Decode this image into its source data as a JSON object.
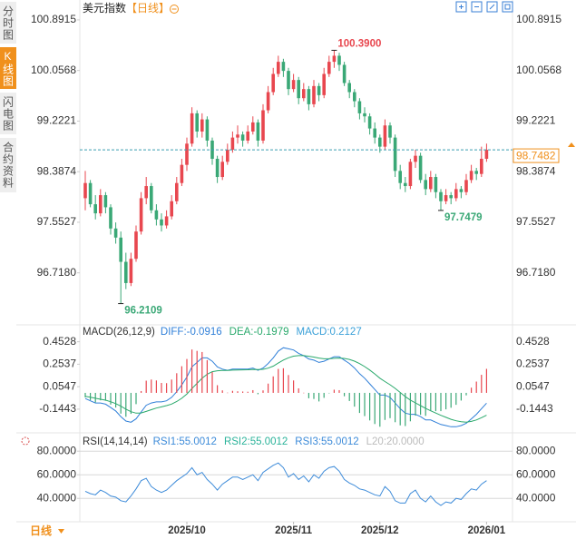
{
  "sidebar": [
    "分时图",
    "K线图",
    "闪电图",
    "合约资料"
  ],
  "title": "美元指数",
  "period": "【日线】",
  "bottom_period": "日线",
  "chart_data": [
    {
      "type": "candlestick",
      "colors": {
        "up": "#e8474f",
        "down": "#3aa876",
        "last": "#3a9fb0",
        "last_label": "#f0901c"
      },
      "ylim": [
        95.95,
        101.07
      ],
      "yticks": [
        100.8915,
        100.0568,
        99.2221,
        98.3874,
        97.5527,
        {
          "value": 96.718,
          "label": "96.7180"
        }
      ],
      "xticks": [
        {
          "value": 20,
          "label": "2025/10"
        },
        {
          "value": 41,
          "label": "2025/11"
        },
        {
          "value": 58,
          "label": "2025/12"
        },
        {
          "value": 79,
          "label": "2026/01"
        }
      ],
      "last_price": 98.7482,
      "annotations": [
        {
          "value": 100.39,
          "label": "100.3900"
        },
        {
          "value": 96.2109,
          "label": "96.2109"
        },
        {
          "value": 97.7479,
          "label": "97.7479"
        }
      ],
      "candles": [
        [
          97.95,
          98.4,
          97.75,
          98.2
        ],
        [
          98.2,
          98.25,
          97.8,
          97.85
        ],
        [
          97.85,
          98.0,
          97.6,
          97.7
        ],
        [
          97.7,
          98.1,
          97.65,
          98.0
        ],
        [
          98.0,
          98.05,
          97.7,
          97.8
        ],
        [
          97.8,
          97.85,
          97.35,
          97.45
        ],
        [
          97.45,
          97.55,
          97.2,
          97.3
        ],
        [
          97.3,
          97.4,
          96.2109,
          96.9
        ],
        [
          96.9,
          97.05,
          96.45,
          96.55
        ],
        [
          96.55,
          97.05,
          96.5,
          96.95
        ],
        [
          96.95,
          97.5,
          96.9,
          97.4
        ],
        [
          97.4,
          98.05,
          97.35,
          97.95
        ],
        [
          97.95,
          98.3,
          97.85,
          98.15
        ],
        [
          98.15,
          98.2,
          97.7,
          97.75
        ],
        [
          97.75,
          97.85,
          97.5,
          97.6
        ],
        [
          97.6,
          97.7,
          97.4,
          97.5
        ],
        [
          97.5,
          97.75,
          97.45,
          97.65
        ],
        [
          97.65,
          98.0,
          97.6,
          97.9
        ],
        [
          97.9,
          98.3,
          97.85,
          98.2
        ],
        [
          98.2,
          98.6,
          98.15,
          98.5
        ],
        [
          98.5,
          98.95,
          98.4,
          98.85
        ],
        [
          98.85,
          99.45,
          98.8,
          99.35
        ],
        [
          99.35,
          99.4,
          98.95,
          99.05
        ],
        [
          99.05,
          99.35,
          98.95,
          99.25
        ],
        [
          99.25,
          99.3,
          98.8,
          98.9
        ],
        [
          98.9,
          98.95,
          98.5,
          98.6
        ],
        [
          98.6,
          98.65,
          98.2,
          98.3
        ],
        [
          98.3,
          98.65,
          98.25,
          98.55
        ],
        [
          98.55,
          98.85,
          98.5,
          98.75
        ],
        [
          98.75,
          99.05,
          98.7,
          98.95
        ],
        [
          98.95,
          99.15,
          98.85,
          99.0
        ],
        [
          99.0,
          99.05,
          98.8,
          98.9
        ],
        [
          98.9,
          99.15,
          98.85,
          99.05
        ],
        [
          99.05,
          99.3,
          99.0,
          99.2
        ],
        [
          99.2,
          99.25,
          98.8,
          98.9
        ],
        [
          98.9,
          99.5,
          98.85,
          99.4
        ],
        [
          99.4,
          99.8,
          99.35,
          99.7
        ],
        [
          99.7,
          100.1,
          99.65,
          100.0
        ],
        [
          100.0,
          100.3,
          99.95,
          100.2
        ],
        [
          100.2,
          100.25,
          99.95,
          100.05
        ],
        [
          100.05,
          100.1,
          99.65,
          99.75
        ],
        [
          99.75,
          100.0,
          99.7,
          99.9
        ],
        [
          99.9,
          99.95,
          99.5,
          99.6
        ],
        [
          99.6,
          99.85,
          99.55,
          99.75
        ],
        [
          99.75,
          99.8,
          99.4,
          99.5
        ],
        [
          99.5,
          99.9,
          99.45,
          99.8
        ],
        [
          99.8,
          99.85,
          99.55,
          99.65
        ],
        [
          99.65,
          100.1,
          99.6,
          100.0
        ],
        [
          100.0,
          100.3,
          99.95,
          100.2
        ],
        [
          100.2,
          100.39,
          100.1,
          100.3
        ],
        [
          100.3,
          100.35,
          100.05,
          100.15
        ],
        [
          100.15,
          100.2,
          99.8,
          99.85
        ],
        [
          99.85,
          99.9,
          99.6,
          99.7
        ],
        [
          99.7,
          99.75,
          99.45,
          99.55
        ],
        [
          99.55,
          99.6,
          99.25,
          99.35
        ],
        [
          99.35,
          99.45,
          99.2,
          99.3
        ],
        [
          99.3,
          99.35,
          99.0,
          99.1
        ],
        [
          99.1,
          99.2,
          98.85,
          98.95
        ],
        [
          98.95,
          99.0,
          98.7,
          98.8
        ],
        [
          98.8,
          99.25,
          98.75,
          99.15
        ],
        [
          99.15,
          99.2,
          98.85,
          98.95
        ],
        [
          98.95,
          99.0,
          98.3,
          98.4
        ],
        [
          98.4,
          98.5,
          98.1,
          98.2
        ],
        [
          98.2,
          98.3,
          98.05,
          98.15
        ],
        [
          98.15,
          98.6,
          98.1,
          98.55
        ],
        [
          98.55,
          98.75,
          98.45,
          98.65
        ],
        [
          98.65,
          98.7,
          98.2,
          98.25
        ],
        [
          98.25,
          98.35,
          98.0,
          98.1
        ],
        [
          98.1,
          98.4,
          98.05,
          98.3
        ],
        [
          98.3,
          98.35,
          97.95,
          98.05
        ],
        [
          98.05,
          98.1,
          97.7479,
          97.9
        ],
        [
          97.9,
          98.1,
          97.85,
          98.0
        ],
        [
          98.0,
          98.05,
          97.85,
          97.95
        ],
        [
          97.95,
          98.2,
          97.9,
          98.1
        ],
        [
          98.1,
          98.15,
          97.95,
          98.05
        ],
        [
          98.05,
          98.35,
          98.0,
          98.25
        ],
        [
          98.25,
          98.5,
          98.2,
          98.4
        ],
        [
          98.4,
          98.45,
          98.25,
          98.35
        ],
        [
          98.35,
          98.8,
          98.3,
          98.6
        ],
        [
          98.6,
          98.85,
          98.55,
          98.7482
        ]
      ]
    },
    {
      "type": "macd",
      "title": "MACD(26,12,9)",
      "title_color": "#333",
      "ylim": [
        -0.33,
        0.49
      ],
      "yticks": [
        0.4528,
        0.2537,
        0.0547,
        -0.1443
      ],
      "colors": {
        "up": "#e8474f",
        "down": "#3aa876"
      },
      "series": [
        {
          "name": "DIFF:-0.0916",
          "color": "#2f7fd8",
          "values": [
            -0.05,
            -0.07,
            -0.09,
            -0.09,
            -0.1,
            -0.13,
            -0.16,
            -0.21,
            -0.25,
            -0.26,
            -0.23,
            -0.17,
            -0.11,
            -0.09,
            -0.08,
            -0.08,
            -0.07,
            -0.04,
            0.01,
            0.07,
            0.14,
            0.23,
            0.27,
            0.31,
            0.31,
            0.28,
            0.23,
            0.21,
            0.2,
            0.21,
            0.21,
            0.21,
            0.21,
            0.22,
            0.2,
            0.22,
            0.26,
            0.31,
            0.37,
            0.4,
            0.39,
            0.38,
            0.35,
            0.33,
            0.3,
            0.29,
            0.27,
            0.28,
            0.3,
            0.32,
            0.32,
            0.29,
            0.26,
            0.22,
            0.17,
            0.13,
            0.08,
            0.03,
            -0.02,
            -0.02,
            -0.04,
            -0.09,
            -0.14,
            -0.18,
            -0.19,
            -0.19,
            -0.21,
            -0.24,
            -0.24,
            -0.26,
            -0.28,
            -0.29,
            -0.3,
            -0.3,
            -0.29,
            -0.27,
            -0.23,
            -0.19,
            -0.14,
            -0.0916
          ]
        },
        {
          "name": "DEA:-0.1979",
          "color": "#29a96b",
          "values": [
            -0.03,
            -0.038,
            -0.048,
            -0.057,
            -0.065,
            -0.078,
            -0.095,
            -0.118,
            -0.144,
            -0.167,
            -0.18,
            -0.178,
            -0.164,
            -0.149,
            -0.135,
            -0.124,
            -0.113,
            -0.099,
            -0.077,
            -0.048,
            -0.01,
            0.038,
            0.084,
            0.129,
            0.165,
            0.188,
            0.196,
            0.199,
            0.199,
            0.201,
            0.203,
            0.204,
            0.205,
            0.208,
            0.206,
            0.209,
            0.219,
            0.237,
            0.264,
            0.291,
            0.311,
            0.325,
            0.33,
            0.33,
            0.324,
            0.317,
            0.308,
            0.302,
            0.302,
            0.306,
            0.308,
            0.305,
            0.296,
            0.281,
            0.259,
            0.233,
            0.202,
            0.168,
            0.13,
            0.1,
            0.072,
            0.04,
            0.004,
            -0.033,
            -0.064,
            -0.089,
            -0.113,
            -0.138,
            -0.159,
            -0.179,
            -0.199,
            -0.217,
            -0.234,
            -0.247,
            -0.256,
            -0.259,
            -0.253,
            -0.24,
            -0.22,
            -0.1979
          ]
        },
        {
          "name": "MACD:0.2127",
          "color": "#3aa0d8",
          "kind": "histogram",
          "values": [
            -0.04,
            -0.064,
            -0.084,
            -0.066,
            -0.07,
            -0.104,
            -0.13,
            -0.184,
            -0.212,
            -0.186,
            -0.1,
            0.016,
            0.108,
            0.118,
            0.11,
            0.088,
            0.086,
            0.118,
            0.174,
            0.236,
            0.3,
            0.384,
            0.372,
            0.362,
            0.29,
            0.184,
            0.068,
            0.022,
            0.002,
            0.018,
            0.014,
            0.012,
            0.01,
            0.024,
            -0.012,
            0.022,
            0.082,
            0.146,
            0.212,
            0.218,
            0.158,
            0.11,
            0.04,
            0.001,
            -0.048,
            -0.054,
            -0.076,
            -0.044,
            -0.004,
            0.028,
            0.024,
            -0.03,
            -0.072,
            -0.122,
            -0.178,
            -0.206,
            -0.244,
            -0.276,
            -0.3,
            -0.24,
            -0.224,
            -0.26,
            -0.288,
            -0.294,
            -0.252,
            -0.202,
            -0.194,
            -0.204,
            -0.162,
            -0.162,
            -0.162,
            -0.146,
            -0.132,
            -0.106,
            -0.068,
            -0.022,
            0.046,
            0.1,
            0.16,
            0.2127
          ]
        }
      ]
    },
    {
      "type": "line",
      "title": "RSI(14,14,14)",
      "title_color": "#333",
      "ylim": [
        24,
        84
      ],
      "yticks": [
        {
          "value": 80,
          "label": "80.0000"
        },
        {
          "value": 60,
          "label": "60.0000"
        },
        {
          "value": 40,
          "label": "40.0000"
        }
      ],
      "grid": true,
      "series": [
        {
          "name": "RSI1:55.0012",
          "color": "#3d8bd9",
          "values": [
            46,
            44,
            43,
            47,
            45,
            42,
            41,
            38,
            37,
            42,
            48,
            55,
            57,
            50,
            47,
            45,
            47,
            51,
            55,
            58,
            61,
            66,
            60,
            62,
            56,
            52,
            47,
            52,
            55,
            58,
            58,
            56,
            58,
            60,
            55,
            62,
            65,
            68,
            70,
            66,
            58,
            61,
            56,
            59,
            54,
            60,
            57,
            63,
            66,
            67,
            63,
            56,
            53,
            51,
            48,
            47,
            45,
            43,
            42,
            50,
            46,
            38,
            36,
            36,
            44,
            47,
            40,
            37,
            42,
            37,
            34,
            37,
            36,
            40,
            39,
            44,
            48,
            47,
            52,
            55.0012
          ]
        },
        {
          "name": "RSI2:55.0012",
          "color": "#2bb39a"
        },
        {
          "name": "RSI3:55.0012",
          "color": "#3d8bd9"
        },
        {
          "name": "L20:20.0000",
          "color": "#bbbbbb"
        }
      ]
    }
  ]
}
